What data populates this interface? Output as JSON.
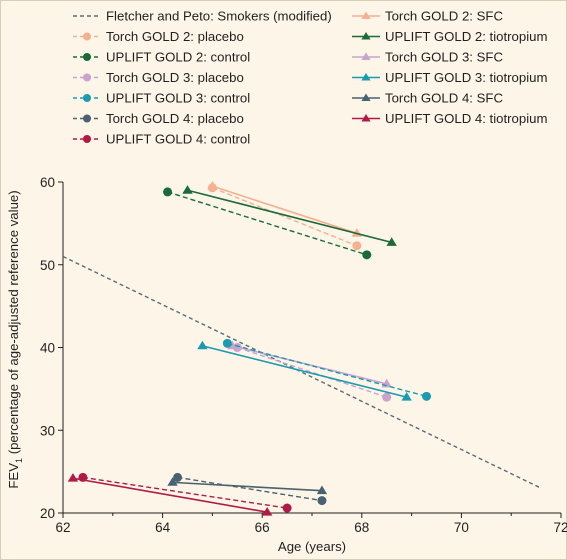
{
  "chart_data": {
    "type": "line",
    "xlabel": "Age (years)",
    "ylabel": "FEV₁ (percentage of age-adjusted reference value)",
    "xlim": [
      62,
      72
    ],
    "ylim": [
      20,
      60
    ],
    "x_ticks": [
      "62",
      "64",
      "66",
      "68",
      "70",
      "72"
    ],
    "y_ticks": [
      "20",
      "30",
      "40",
      "50",
      "60"
    ],
    "grid": false,
    "legend_placement": "top",
    "series": [
      {
        "name": "Fletcher and Peto: Smokers (modified)",
        "color": "#5a6b78",
        "dash": true,
        "marker": "none",
        "x": [
          62,
          71.6
        ],
        "y": [
          51,
          23
        ]
      },
      {
        "name": "Torch GOLD 2: SFC",
        "color": "#f4b08f",
        "dash": false,
        "marker": "triangle",
        "x": [
          65,
          67.9
        ],
        "y": [
          59.5,
          53.8
        ]
      },
      {
        "name": "Torch GOLD 2: placebo",
        "color": "#f4b08f",
        "dash": true,
        "marker": "circle",
        "x": [
          65,
          67.9
        ],
        "y": [
          59.3,
          52.3
        ]
      },
      {
        "name": "UPLIFT GOLD 2: tiotropium",
        "color": "#1b6b3a",
        "dash": false,
        "marker": "triangle",
        "x": [
          64.5,
          68.6
        ],
        "y": [
          59,
          52.7
        ]
      },
      {
        "name": "UPLIFT GOLD 2: control",
        "color": "#1b6b3a",
        "dash": true,
        "marker": "circle",
        "x": [
          64.1,
          68.1
        ],
        "y": [
          58.8,
          51.2
        ]
      },
      {
        "name": "Torch GOLD 3: SFC",
        "color": "#c9a3cc",
        "dash": false,
        "marker": "triangle",
        "x": [
          65.4,
          68.5
        ],
        "y": [
          40.2,
          35.6
        ]
      },
      {
        "name": "Torch GOLD 3: placebo",
        "color": "#c9a3cc",
        "dash": true,
        "marker": "circle",
        "x": [
          65.5,
          68.5
        ],
        "y": [
          40,
          34
        ]
      },
      {
        "name": "UPLIFT GOLD 3: tiotropium",
        "color": "#1a9bb0",
        "dash": false,
        "marker": "triangle",
        "x": [
          64.8,
          68.9
        ],
        "y": [
          40.2,
          34
        ]
      },
      {
        "name": "UPLIFT GOLD 3: control",
        "color": "#1a9bb0",
        "dash": true,
        "marker": "circle",
        "x": [
          65.3,
          69.3
        ],
        "y": [
          40.5,
          34.1
        ]
      },
      {
        "name": "Torch GOLD 4: SFC",
        "color": "#4a6170",
        "dash": false,
        "marker": "triangle",
        "x": [
          64.2,
          67.2
        ],
        "y": [
          23.7,
          22.7
        ]
      },
      {
        "name": "Torch GOLD 4: placebo",
        "color": "#4a6170",
        "dash": true,
        "marker": "circle",
        "x": [
          64.3,
          67.2
        ],
        "y": [
          24.3,
          21.5
        ]
      },
      {
        "name": "UPLIFT GOLD 4: tiotropium",
        "color": "#b01a46",
        "dash": false,
        "marker": "triangle",
        "x": [
          62.2,
          66.1
        ],
        "y": [
          24.2,
          20.1
        ]
      },
      {
        "name": "UPLIFT GOLD 4: control",
        "color": "#b01a46",
        "dash": true,
        "marker": "circle",
        "x": [
          62.4,
          66.5
        ],
        "y": [
          24.3,
          20.6
        ]
      }
    ],
    "legend_left": [
      "Fletcher and Peto: Smokers (modified)",
      "Torch GOLD 2: placebo",
      "UPLIFT GOLD 2: control",
      "Torch GOLD 3: placebo",
      "UPLIFT GOLD 3: control",
      "Torch GOLD 4: placebo",
      "UPLIFT GOLD 4: control"
    ],
    "legend_right": [
      "Torch GOLD 2: SFC",
      "UPLIFT GOLD 2: tiotropium",
      "Torch GOLD 3: SFC",
      "UPLIFT GOLD 3: tiotropium",
      "Torch GOLD 4: SFC",
      "UPLIFT GOLD 4: tiotropium"
    ]
  }
}
